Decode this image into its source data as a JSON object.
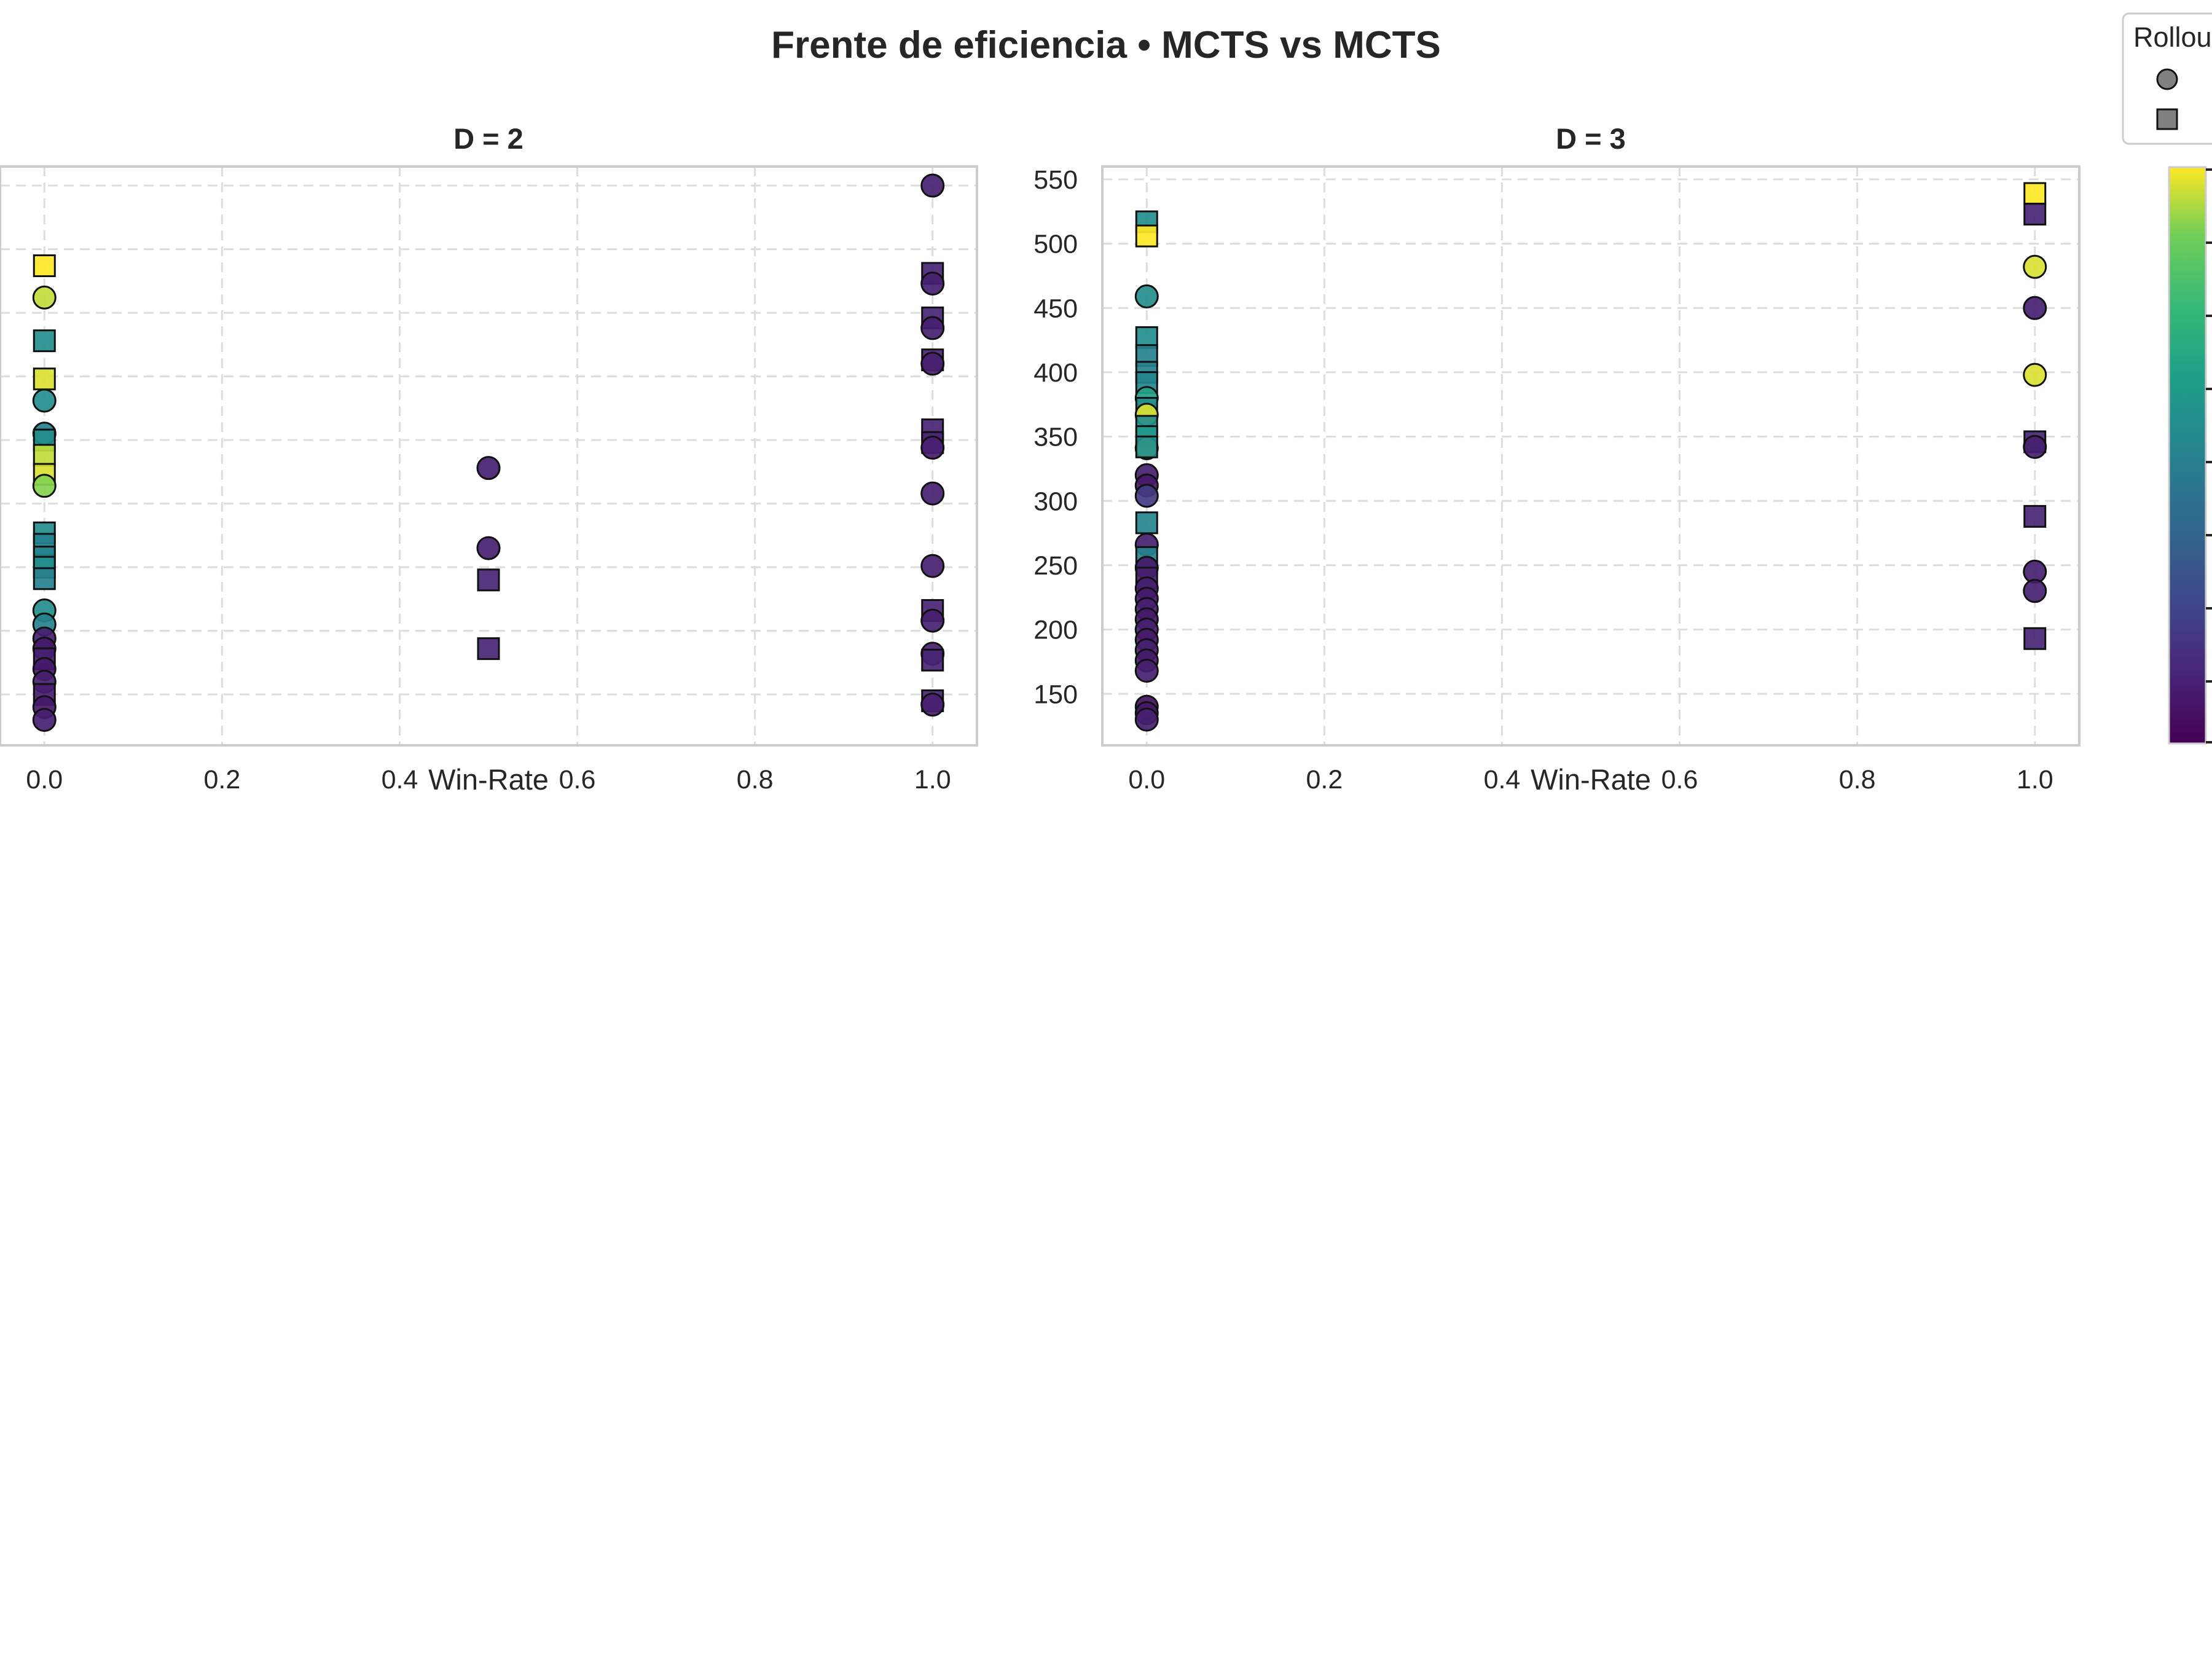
{
  "chart_data": {
    "title": "Frente de eficiencia • MCTS vs MCTS",
    "legend": {
      "title": "Rollou",
      "placement": "top-right",
      "entries": [
        {
          "marker": "circle",
          "label": ""
        },
        {
          "marker": "square",
          "label": ""
        }
      ]
    },
    "colormap": "viridis",
    "colors": {
      "low": "#440154",
      "mid": "#21918c",
      "high": "#fde725",
      "frame": "#cccccc",
      "grid": "#dddddd"
    },
    "panels": [
      {
        "type": "scatter",
        "title": "D = 2",
        "xlabel": "Win-Rate",
        "xlim": [
          -0.05,
          1.05
        ],
        "ylim": [
          110,
          565
        ],
        "xticks": [
          "0.0",
          "0.2",
          "0.4",
          "0.6",
          "0.8",
          "1.0"
        ],
        "yticks": [],
        "grid": true,
        "points": [
          {
            "x": 0.0,
            "y": 487,
            "shape": "square",
            "c": 1.0
          },
          {
            "x": 0.0,
            "y": 462,
            "shape": "circle",
            "c": 0.95
          },
          {
            "x": 0.0,
            "y": 428,
            "shape": "square",
            "c": 0.55
          },
          {
            "x": 0.0,
            "y": 398,
            "shape": "square",
            "c": 0.97
          },
          {
            "x": 0.0,
            "y": 381,
            "shape": "circle",
            "c": 0.55
          },
          {
            "x": 0.0,
            "y": 355,
            "shape": "circle",
            "c": 0.5
          },
          {
            "x": 0.0,
            "y": 350,
            "shape": "square",
            "c": 0.55
          },
          {
            "x": 0.0,
            "y": 338,
            "shape": "square",
            "c": 0.95
          },
          {
            "x": 0.0,
            "y": 323,
            "shape": "square",
            "c": 0.97
          },
          {
            "x": 0.0,
            "y": 314,
            "shape": "circle",
            "c": 0.9
          },
          {
            "x": 0.0,
            "y": 277,
            "shape": "square",
            "c": 0.55
          },
          {
            "x": 0.0,
            "y": 268,
            "shape": "square",
            "c": 0.5
          },
          {
            "x": 0.0,
            "y": 258,
            "shape": "square",
            "c": 0.52
          },
          {
            "x": 0.0,
            "y": 250,
            "shape": "square",
            "c": 0.55
          },
          {
            "x": 0.0,
            "y": 241,
            "shape": "square",
            "c": 0.5
          },
          {
            "x": 0.0,
            "y": 216,
            "shape": "circle",
            "c": 0.55
          },
          {
            "x": 0.0,
            "y": 205,
            "shape": "circle",
            "c": 0.5
          },
          {
            "x": 0.0,
            "y": 194,
            "shape": "circle",
            "c": 0.1
          },
          {
            "x": 0.0,
            "y": 186,
            "shape": "circle",
            "c": 0.08
          },
          {
            "x": 0.0,
            "y": 178,
            "shape": "square",
            "c": 0.1
          },
          {
            "x": 0.0,
            "y": 170,
            "shape": "circle",
            "c": 0.08
          },
          {
            "x": 0.0,
            "y": 160,
            "shape": "circle",
            "c": 0.1
          },
          {
            "x": 0.0,
            "y": 150,
            "shape": "square",
            "c": 0.1
          },
          {
            "x": 0.0,
            "y": 140,
            "shape": "circle",
            "c": 0.08
          },
          {
            "x": 0.0,
            "y": 130,
            "shape": "circle",
            "c": 0.1
          },
          {
            "x": 0.5,
            "y": 328,
            "shape": "circle",
            "c": 0.1
          },
          {
            "x": 0.5,
            "y": 265,
            "shape": "circle",
            "c": 0.1
          },
          {
            "x": 0.5,
            "y": 240,
            "shape": "square",
            "c": 0.12
          },
          {
            "x": 0.5,
            "y": 186,
            "shape": "square",
            "c": 0.12
          },
          {
            "x": 1.0,
            "y": 550,
            "shape": "circle",
            "c": 0.1
          },
          {
            "x": 1.0,
            "y": 481,
            "shape": "square",
            "c": 0.12
          },
          {
            "x": 1.0,
            "y": 473,
            "shape": "circle",
            "c": 0.1
          },
          {
            "x": 1.0,
            "y": 446,
            "shape": "square",
            "c": 0.12
          },
          {
            "x": 1.0,
            "y": 438,
            "shape": "circle",
            "c": 0.1
          },
          {
            "x": 1.0,
            "y": 413,
            "shape": "square",
            "c": 0.12
          },
          {
            "x": 1.0,
            "y": 410,
            "shape": "circle",
            "c": 0.1
          },
          {
            "x": 1.0,
            "y": 358,
            "shape": "square",
            "c": 0.12
          },
          {
            "x": 1.0,
            "y": 348,
            "shape": "square",
            "c": 0.12
          },
          {
            "x": 1.0,
            "y": 344,
            "shape": "circle",
            "c": 0.1
          },
          {
            "x": 1.0,
            "y": 308,
            "shape": "circle",
            "c": 0.1
          },
          {
            "x": 1.0,
            "y": 251,
            "shape": "circle",
            "c": 0.1
          },
          {
            "x": 1.0,
            "y": 216,
            "shape": "square",
            "c": 0.12
          },
          {
            "x": 1.0,
            "y": 208,
            "shape": "circle",
            "c": 0.1
          },
          {
            "x": 1.0,
            "y": 182,
            "shape": "circle",
            "c": 0.1
          },
          {
            "x": 1.0,
            "y": 177,
            "shape": "square",
            "c": 0.12
          },
          {
            "x": 1.0,
            "y": 145,
            "shape": "square",
            "c": 0.12
          },
          {
            "x": 1.0,
            "y": 142,
            "shape": "circle",
            "c": 0.1
          }
        ]
      },
      {
        "type": "scatter",
        "title": "D = 3",
        "xlabel": "Win-Rate",
        "xlim": [
          -0.05,
          1.05
        ],
        "ylim": [
          110,
          560
        ],
        "xticks": [
          "0.0",
          "0.2",
          "0.4",
          "0.6",
          "0.8",
          "1.0"
        ],
        "yticks": [
          "150",
          "200",
          "250",
          "300",
          "350",
          "400",
          "450",
          "500",
          "550"
        ],
        "grid": true,
        "points": [
          {
            "x": 0.0,
            "y": 517,
            "shape": "square",
            "c": 0.55
          },
          {
            "x": 0.0,
            "y": 506,
            "shape": "square",
            "c": 1.0
          },
          {
            "x": 0.0,
            "y": 459,
            "shape": "circle",
            "c": 0.55
          },
          {
            "x": 0.0,
            "y": 427,
            "shape": "square",
            "c": 0.55
          },
          {
            "x": 0.0,
            "y": 413,
            "shape": "square",
            "c": 0.5
          },
          {
            "x": 0.0,
            "y": 400,
            "shape": "square",
            "c": 0.5
          },
          {
            "x": 0.0,
            "y": 392,
            "shape": "square",
            "c": 0.52
          },
          {
            "x": 0.0,
            "y": 380,
            "shape": "circle",
            "c": 0.65
          },
          {
            "x": 0.0,
            "y": 372,
            "shape": "square",
            "c": 0.55
          },
          {
            "x": 0.0,
            "y": 367,
            "shape": "circle",
            "c": 0.97
          },
          {
            "x": 0.0,
            "y": 358,
            "shape": "square",
            "c": 0.55
          },
          {
            "x": 0.0,
            "y": 350,
            "shape": "square",
            "c": 0.6
          },
          {
            "x": 0.0,
            "y": 341,
            "shape": "circle",
            "c": 0.95
          },
          {
            "x": 0.0,
            "y": 342,
            "shape": "square",
            "c": 0.55
          },
          {
            "x": 0.0,
            "y": 320,
            "shape": "circle",
            "c": 0.1
          },
          {
            "x": 0.0,
            "y": 312,
            "shape": "circle",
            "c": 0.08
          },
          {
            "x": 0.0,
            "y": 304,
            "shape": "circle",
            "c": 0.2
          },
          {
            "x": 0.0,
            "y": 283,
            "shape": "square",
            "c": 0.52
          },
          {
            "x": 0.0,
            "y": 266,
            "shape": "circle",
            "c": 0.1
          },
          {
            "x": 0.0,
            "y": 256,
            "shape": "square",
            "c": 0.5
          },
          {
            "x": 0.0,
            "y": 248,
            "shape": "circle",
            "c": 0.08
          },
          {
            "x": 0.0,
            "y": 240,
            "shape": "square",
            "c": 0.1
          },
          {
            "x": 0.0,
            "y": 232,
            "shape": "circle",
            "c": 0.1
          },
          {
            "x": 0.0,
            "y": 224,
            "shape": "circle",
            "c": 0.08
          },
          {
            "x": 0.0,
            "y": 216,
            "shape": "circle",
            "c": 0.1
          },
          {
            "x": 0.0,
            "y": 208,
            "shape": "circle",
            "c": 0.08
          },
          {
            "x": 0.0,
            "y": 200,
            "shape": "circle",
            "c": 0.1
          },
          {
            "x": 0.0,
            "y": 192,
            "shape": "circle",
            "c": 0.08
          },
          {
            "x": 0.0,
            "y": 184,
            "shape": "circle",
            "c": 0.1
          },
          {
            "x": 0.0,
            "y": 176,
            "shape": "circle",
            "c": 0.08
          },
          {
            "x": 0.0,
            "y": 168,
            "shape": "circle",
            "c": 0.1
          },
          {
            "x": 0.0,
            "y": 140,
            "shape": "circle",
            "c": 0.05
          },
          {
            "x": 0.0,
            "y": 135,
            "shape": "circle",
            "c": 0.08
          },
          {
            "x": 0.0,
            "y": 130,
            "shape": "circle",
            "c": 0.1
          },
          {
            "x": 1.0,
            "y": 539,
            "shape": "square",
            "c": 1.0
          },
          {
            "x": 1.0,
            "y": 523,
            "shape": "square",
            "c": 0.12
          },
          {
            "x": 1.0,
            "y": 482,
            "shape": "circle",
            "c": 0.97
          },
          {
            "x": 1.0,
            "y": 450,
            "shape": "circle",
            "c": 0.1
          },
          {
            "x": 1.0,
            "y": 398,
            "shape": "circle",
            "c": 0.97
          },
          {
            "x": 1.0,
            "y": 346,
            "shape": "square",
            "c": 0.12
          },
          {
            "x": 1.0,
            "y": 342,
            "shape": "circle",
            "c": 0.1
          },
          {
            "x": 1.0,
            "y": 288,
            "shape": "square",
            "c": 0.12
          },
          {
            "x": 1.0,
            "y": 245,
            "shape": "circle",
            "c": 0.1
          },
          {
            "x": 1.0,
            "y": 230,
            "shape": "circle",
            "c": 0.1
          },
          {
            "x": 1.0,
            "y": 193,
            "shape": "square",
            "c": 0.12
          }
        ]
      }
    ]
  }
}
